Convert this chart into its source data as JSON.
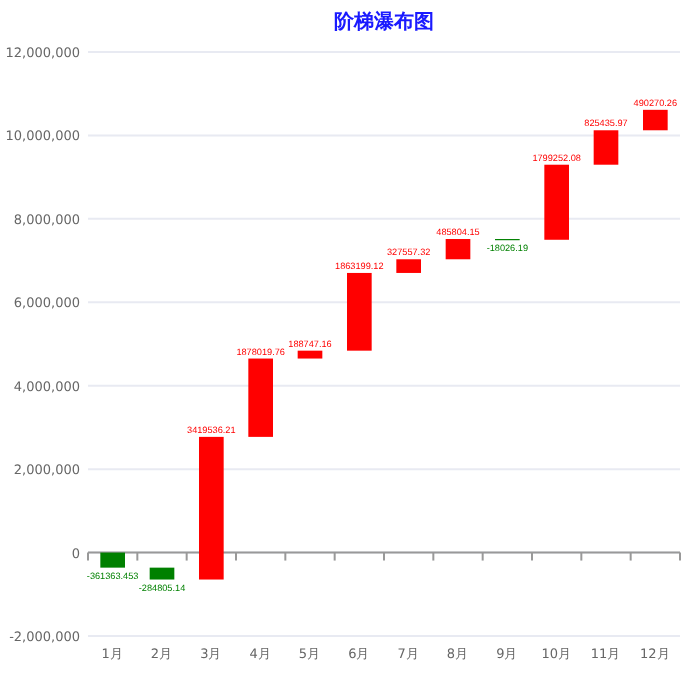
{
  "chart_data": {
    "type": "bar",
    "title": "阶梯瀑布图",
    "categories": [
      "1月",
      "2月",
      "3月",
      "4月",
      "5月",
      "6月",
      "7月",
      "8月",
      "9月",
      "10月",
      "11月",
      "12月"
    ],
    "values": [
      -361363.453,
      -284805.14,
      3419536.21,
      1878019.76,
      188747.16,
      1863199.12,
      327557.32,
      485804.15,
      -18026.19,
      1799252.08,
      825435.97,
      490270.26
    ],
    "base": [
      0,
      -361363.453,
      -646168.593,
      2773367.617,
      4651387.377,
      4840134.537,
      6703333.657,
      7030890.977,
      7516695.127,
      7498668.937,
      9297921.017,
      10123356.987
    ],
    "colors": [
      "#008000",
      "#008000",
      "#ff0000",
      "#ff0000",
      "#ff0000",
      "#ff0000",
      "#ff0000",
      "#ff0000",
      "#008000",
      "#ff0000",
      "#ff0000",
      "#ff0000"
    ],
    "data_labels": true,
    "ylim": [
      -2000000,
      12000000
    ],
    "yticks": [
      {
        "value": -2000000,
        "label": "-2,000,000"
      },
      {
        "value": 0,
        "label": "0"
      },
      {
        "value": 2000000,
        "label": "2,000,000"
      },
      {
        "value": 4000000,
        "label": "4,000,000"
      },
      {
        "value": 6000000,
        "label": "6,000,000"
      },
      {
        "value": 8000000,
        "label": "8,000,000"
      },
      {
        "value": 10000000,
        "label": "10,000,000"
      },
      {
        "value": 12000000,
        "label": "12,000,000"
      }
    ],
    "grid": true
  }
}
